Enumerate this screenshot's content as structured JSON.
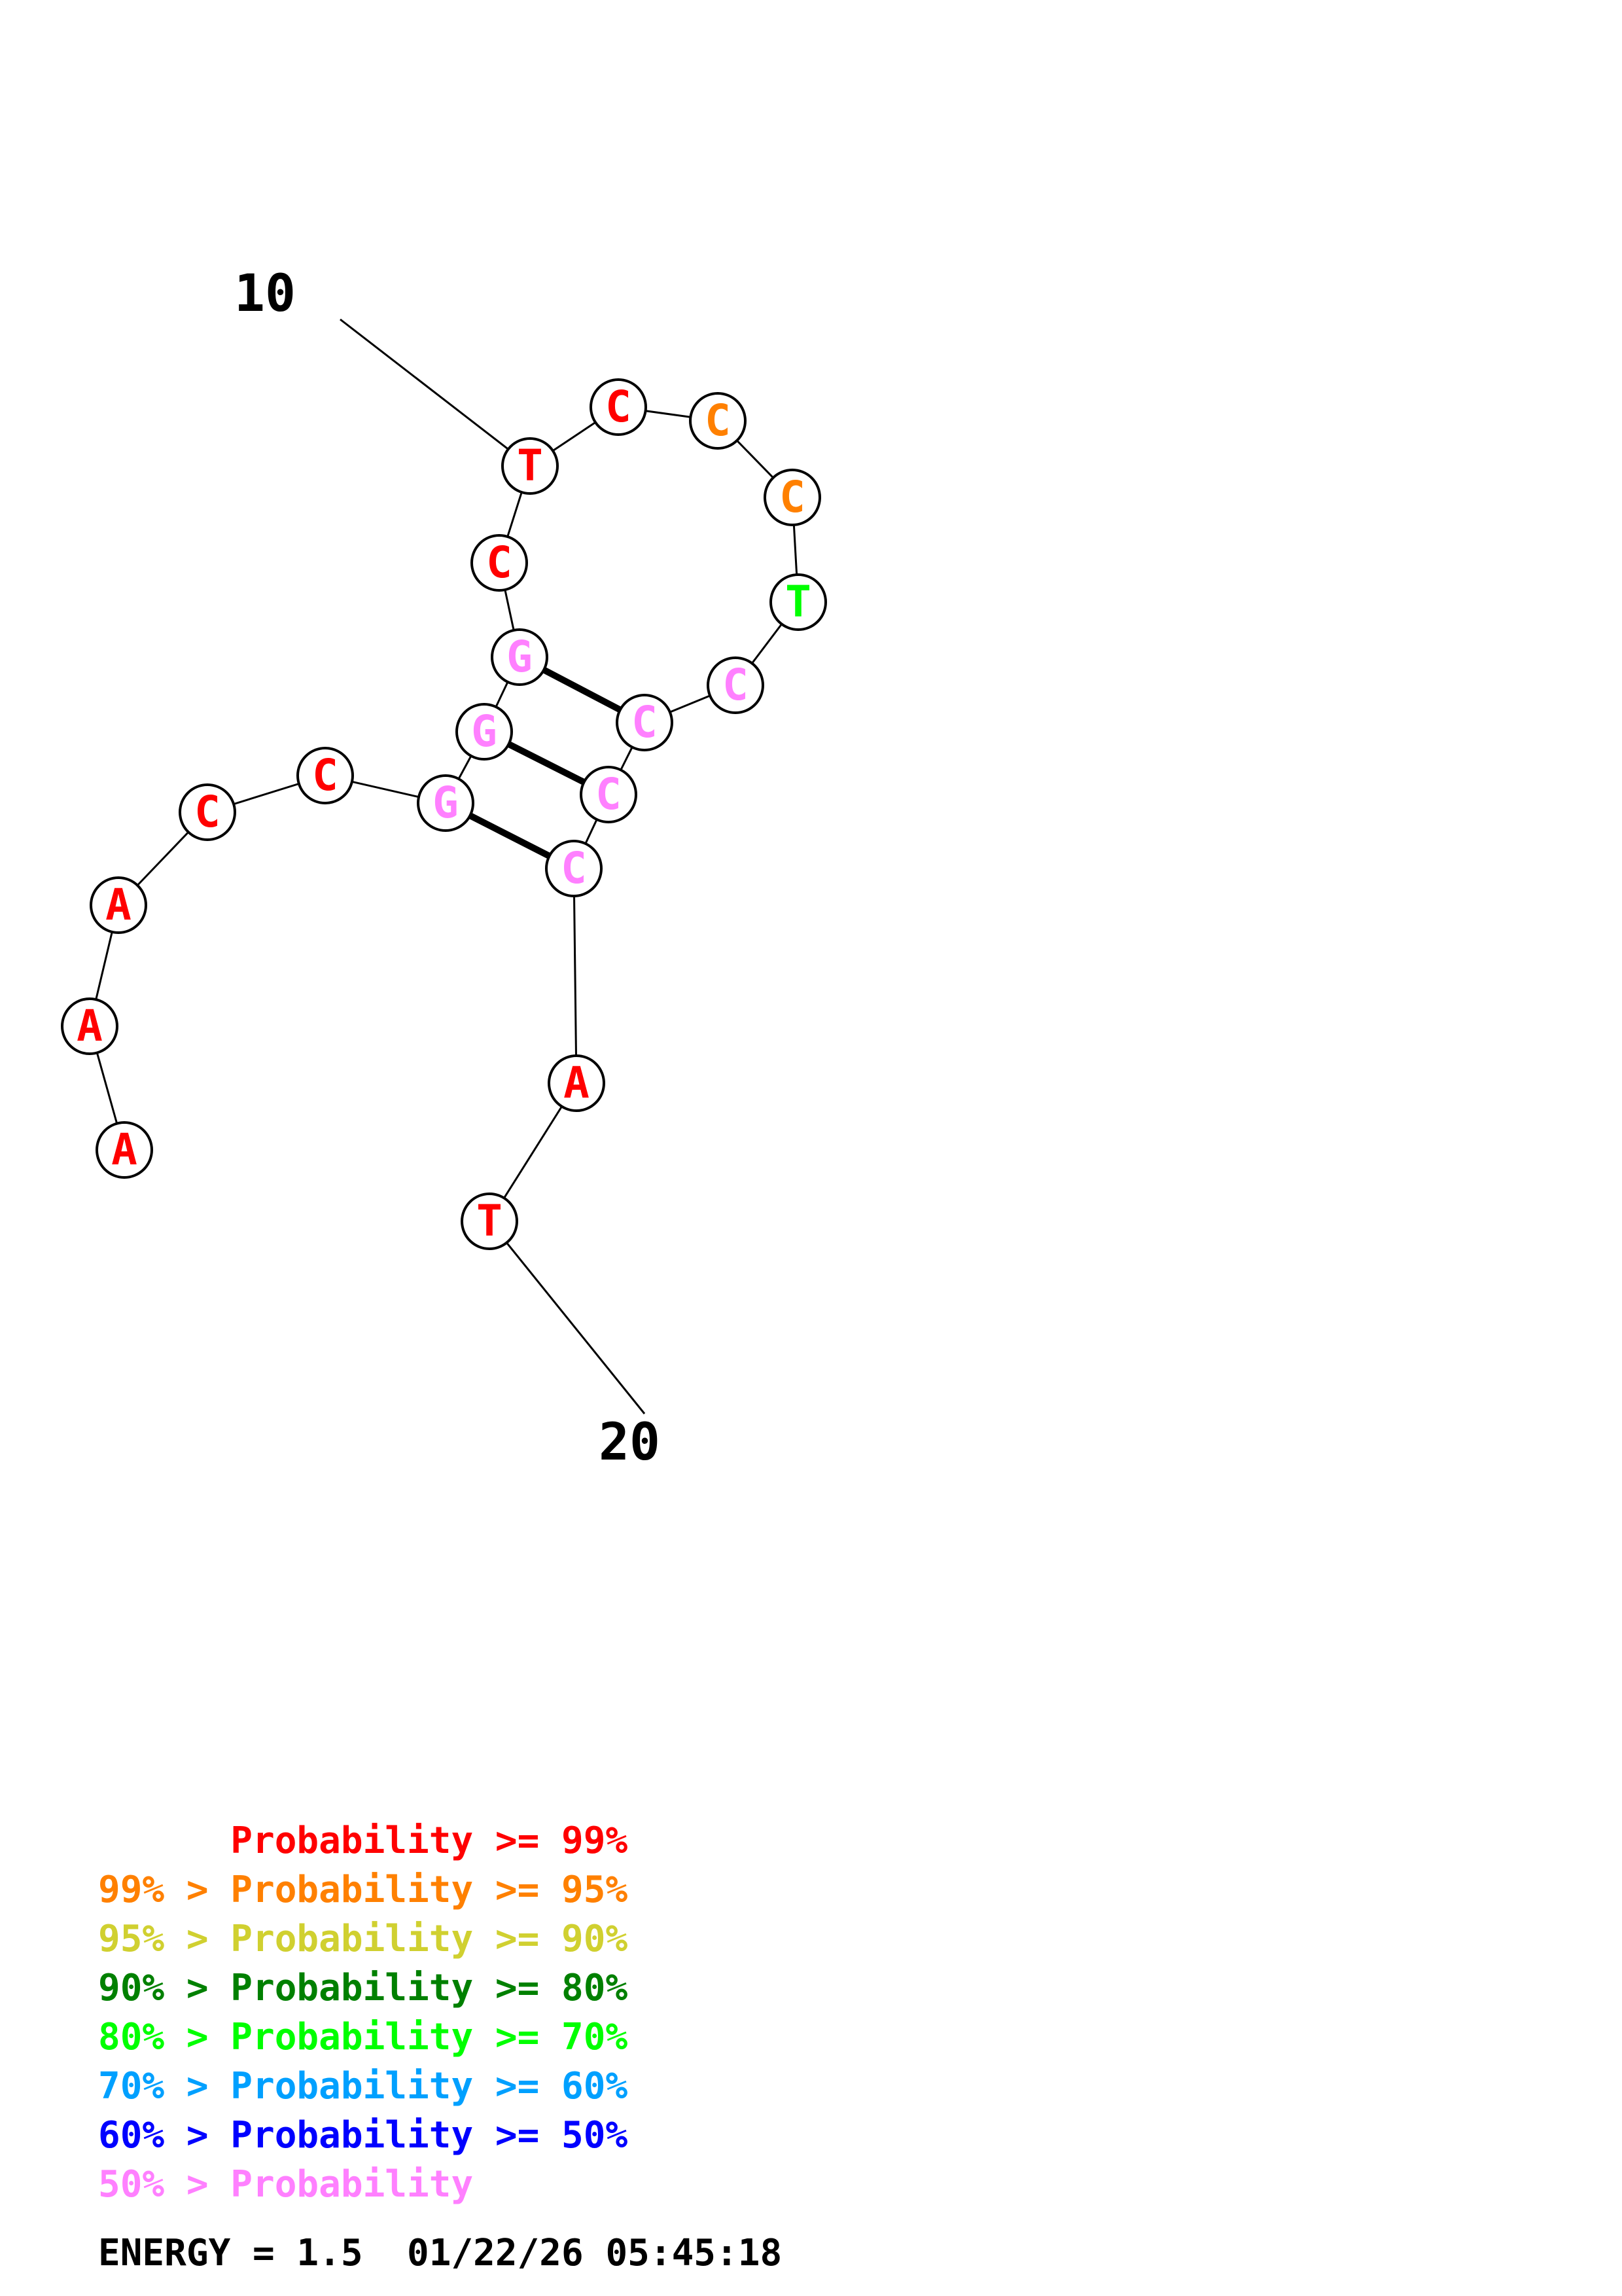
{
  "diagram": {
    "bases": [
      {
        "letter": "A",
        "color": "#ff0000"
      },
      {
        "letter": "A",
        "color": "#ff0000"
      },
      {
        "letter": "A",
        "color": "#ff0000"
      },
      {
        "letter": "C",
        "color": "#ff0000"
      },
      {
        "letter": "C",
        "color": "#ff0000"
      },
      {
        "letter": "G",
        "color": "#ff80ff"
      },
      {
        "letter": "G",
        "color": "#ff80ff"
      },
      {
        "letter": "G",
        "color": "#ff80ff"
      },
      {
        "letter": "C",
        "color": "#ff0000"
      },
      {
        "letter": "T",
        "color": "#ff0000"
      },
      {
        "letter": "C",
        "color": "#ff0000"
      },
      {
        "letter": "C",
        "color": "#ff8000"
      },
      {
        "letter": "C",
        "color": "#ff8000"
      },
      {
        "letter": "T",
        "color": "#00ff00"
      },
      {
        "letter": "C",
        "color": "#ff80ff"
      },
      {
        "letter": "C",
        "color": "#ff80ff"
      },
      {
        "letter": "C",
        "color": "#ff80ff"
      },
      {
        "letter": "C",
        "color": "#ff80ff"
      },
      {
        "letter": "A",
        "color": "#ff0000"
      },
      {
        "letter": "T",
        "color": "#ff0000"
      }
    ],
    "pairs": [
      [
        6,
        18
      ],
      [
        7,
        17
      ],
      [
        8,
        16
      ]
    ],
    "index_labels": [
      {
        "text": "10",
        "base": 10
      },
      {
        "text": "20",
        "base": 20
      }
    ]
  },
  "legend": [
    {
      "text": "      Probability >= 99%",
      "color": "#ff0000"
    },
    {
      "text": "99% > Probability >= 95%",
      "color": "#ff8000"
    },
    {
      "text": "95% > Probability >= 90%",
      "color": "#d0d030"
    },
    {
      "text": "90% > Probability >= 80%",
      "color": "#008000"
    },
    {
      "text": "80% > Probability >= 70%",
      "color": "#00ff00"
    },
    {
      "text": "70% > Probability >= 60%",
      "color": "#00a0ff"
    },
    {
      "text": "60% > Probability >= 50%",
      "color": "#0000ff"
    },
    {
      "text": "50% > Probability",
      "color": "#ff80ff"
    }
  ],
  "footer": {
    "energy": "ENERGY = 1.5  01/22/26 05:45:18"
  }
}
